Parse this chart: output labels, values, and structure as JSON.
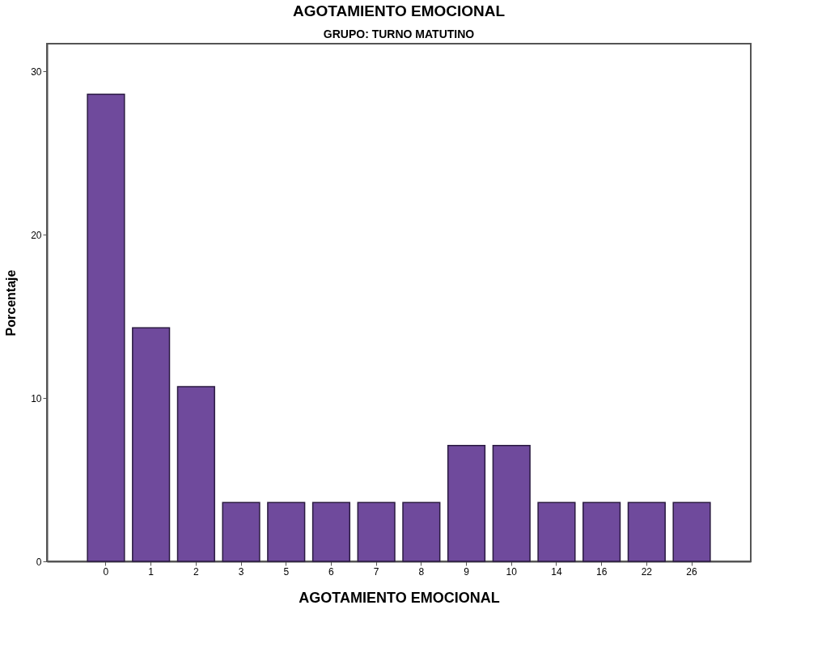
{
  "chart_data": {
    "type": "bar",
    "title": "AGOTAMIENTO EMOCIONAL",
    "subtitle": "GRUPO: TURNO MATUTINO",
    "xlabel": "AGOTAMIENTO EMOCIONAL",
    "ylabel": "Porcentaje",
    "categories": [
      "0",
      "1",
      "2",
      "3",
      "5",
      "6",
      "7",
      "8",
      "9",
      "10",
      "14",
      "16",
      "22",
      "26"
    ],
    "values": [
      28.6,
      14.3,
      10.7,
      3.6,
      3.6,
      3.6,
      3.6,
      3.6,
      7.1,
      7.1,
      3.6,
      3.6,
      3.6,
      3.6
    ],
    "color": "#6f4a9c",
    "ylim": [
      0,
      31.7
    ],
    "yticks": [
      0,
      10,
      20,
      30
    ],
    "grid": false
  }
}
